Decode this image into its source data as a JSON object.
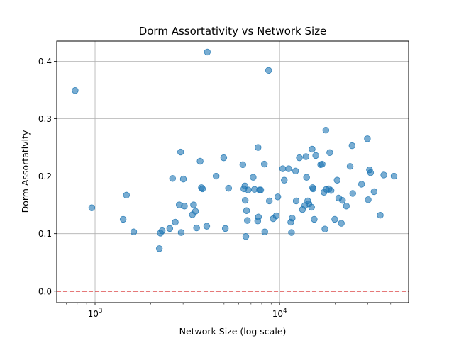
{
  "chart_data": {
    "type": "scatter",
    "title": "Dorm Assortativity vs Network Size",
    "xlabel": "Network Size (log scale)",
    "ylabel": "Dorm Assortativity",
    "xscale": "log",
    "xlim": [
      620,
      50000
    ],
    "ylim": [
      -0.02,
      0.435
    ],
    "xticks": [
      {
        "value": 1000,
        "base": "10",
        "exp": "3"
      },
      {
        "value": 10000,
        "base": "10",
        "exp": "4"
      }
    ],
    "yticks": [
      "0.0",
      "0.1",
      "0.2",
      "0.3",
      "0.4"
    ],
    "grid": true,
    "reference_line": {
      "y": 0.0,
      "color": "#d62728",
      "style": "dashed"
    },
    "point_color": "#1f77b4",
    "series": [
      {
        "points": [
          [
            780,
            0.349
          ],
          [
            960,
            0.145
          ],
          [
            1420,
            0.125
          ],
          [
            1480,
            0.167
          ],
          [
            1620,
            0.103
          ],
          [
            2230,
            0.074
          ],
          [
            2260,
            0.101
          ],
          [
            2310,
            0.105
          ],
          [
            2540,
            0.109
          ],
          [
            2630,
            0.196
          ],
          [
            2720,
            0.12
          ],
          [
            2860,
            0.15
          ],
          [
            2910,
            0.242
          ],
          [
            2930,
            0.102
          ],
          [
            3010,
            0.195
          ],
          [
            3050,
            0.148
          ],
          [
            3370,
            0.133
          ],
          [
            3420,
            0.15
          ],
          [
            3500,
            0.139
          ],
          [
            3550,
            0.11
          ],
          [
            3710,
            0.226
          ],
          [
            3770,
            0.18
          ],
          [
            3820,
            0.178
          ],
          [
            4030,
            0.113
          ],
          [
            4060,
            0.416
          ],
          [
            4530,
            0.2
          ],
          [
            4980,
            0.232
          ],
          [
            5080,
            0.109
          ],
          [
            5290,
            0.179
          ],
          [
            6320,
            0.22
          ],
          [
            6400,
            0.178
          ],
          [
            6490,
            0.183
          ],
          [
            6510,
            0.158
          ],
          [
            6560,
            0.095
          ],
          [
            6620,
            0.14
          ],
          [
            6690,
            0.123
          ],
          [
            6760,
            0.176
          ],
          [
            7190,
            0.198
          ],
          [
            7310,
            0.177
          ],
          [
            7610,
            0.122
          ],
          [
            7640,
            0.25
          ],
          [
            7680,
            0.129
          ],
          [
            7790,
            0.176
          ],
          [
            7900,
            0.176
          ],
          [
            8270,
            0.221
          ],
          [
            8310,
            0.103
          ],
          [
            8720,
            0.384
          ],
          [
            8800,
            0.157
          ],
          [
            9230,
            0.126
          ],
          [
            9590,
            0.131
          ],
          [
            9780,
            0.164
          ],
          [
            10400,
            0.213
          ],
          [
            10600,
            0.193
          ],
          [
            11200,
            0.213
          ],
          [
            11500,
            0.12
          ],
          [
            11600,
            0.102
          ],
          [
            11700,
            0.127
          ],
          [
            12200,
            0.209
          ],
          [
            12300,
            0.157
          ],
          [
            12800,
            0.232
          ],
          [
            13300,
            0.142
          ],
          [
            13700,
            0.149
          ],
          [
            13900,
            0.234
          ],
          [
            14000,
            0.198
          ],
          [
            14200,
            0.157
          ],
          [
            14400,
            0.152
          ],
          [
            14900,
            0.146
          ],
          [
            15000,
            0.247
          ],
          [
            15100,
            0.18
          ],
          [
            15200,
            0.178
          ],
          [
            15400,
            0.125
          ],
          [
            15700,
            0.236
          ],
          [
            16700,
            0.22
          ],
          [
            17000,
            0.221
          ],
          [
            17400,
            0.172
          ],
          [
            17600,
            0.108
          ],
          [
            17800,
            0.28
          ],
          [
            17900,
            0.177
          ],
          [
            18500,
            0.178
          ],
          [
            18700,
            0.241
          ],
          [
            19000,
            0.175
          ],
          [
            19900,
            0.125
          ],
          [
            20500,
            0.193
          ],
          [
            20900,
            0.162
          ],
          [
            21600,
            0.118
          ],
          [
            21900,
            0.158
          ],
          [
            23000,
            0.148
          ],
          [
            24100,
            0.217
          ],
          [
            24700,
            0.253
          ],
          [
            24900,
            0.17
          ],
          [
            27800,
            0.186
          ],
          [
            29900,
            0.265
          ],
          [
            30200,
            0.159
          ],
          [
            30700,
            0.211
          ],
          [
            31100,
            0.206
          ],
          [
            32500,
            0.173
          ],
          [
            35100,
            0.132
          ],
          [
            36700,
            0.202
          ],
          [
            41700,
            0.2
          ]
        ]
      }
    ]
  }
}
